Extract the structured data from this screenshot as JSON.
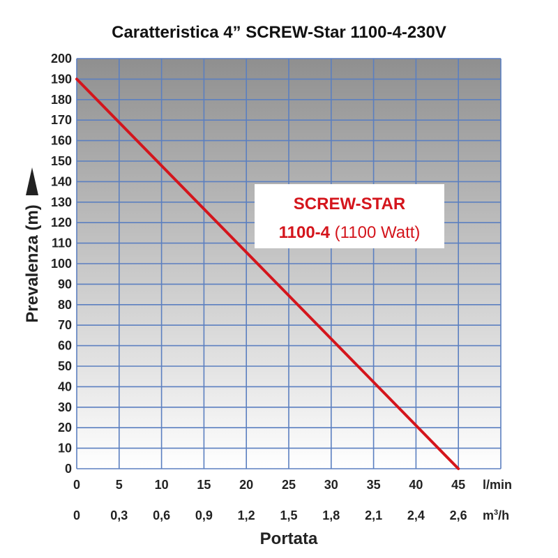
{
  "chart_data": {
    "type": "line",
    "title": "Caratteristica 4” SCREW-Star 1100-4-230V",
    "ylabel": "Prevalenza (m)",
    "xlabel": "Portata",
    "ylim": [
      0,
      200
    ],
    "yticks": [
      0,
      10,
      20,
      30,
      40,
      50,
      60,
      70,
      80,
      90,
      100,
      110,
      120,
      130,
      140,
      150,
      160,
      170,
      180,
      190,
      200
    ],
    "xlim": [
      0,
      50
    ],
    "x_lmin_ticks": [
      0,
      5,
      10,
      15,
      20,
      25,
      30,
      35,
      40,
      45
    ],
    "x_lmin_unit": "l/min",
    "x_m3h_ticks": [
      "0",
      "0,3",
      "0,6",
      "0,9",
      "1,2",
      "1,5",
      "1,8",
      "2,1",
      "2,4",
      "2,6"
    ],
    "x_m3h_unit_base": "m",
    "x_m3h_unit_sup": "3",
    "x_m3h_unit_tail": "/h",
    "grid": true,
    "series": [
      {
        "name": "SCREW-STAR 1100-4 (1100 Watt)",
        "color": "#d4151c",
        "x": [
          0,
          45
        ],
        "y": [
          190,
          0
        ]
      }
    ],
    "legend": {
      "line1": "SCREW-STAR",
      "line2_bold": "1100-4",
      "line2_rest": " (1100 Watt)"
    },
    "colors": {
      "gradient_top": "#8f8f8f",
      "gradient_bottom": "#ffffff",
      "grid": "#5b7fc0",
      "line": "#d4151c"
    }
  }
}
